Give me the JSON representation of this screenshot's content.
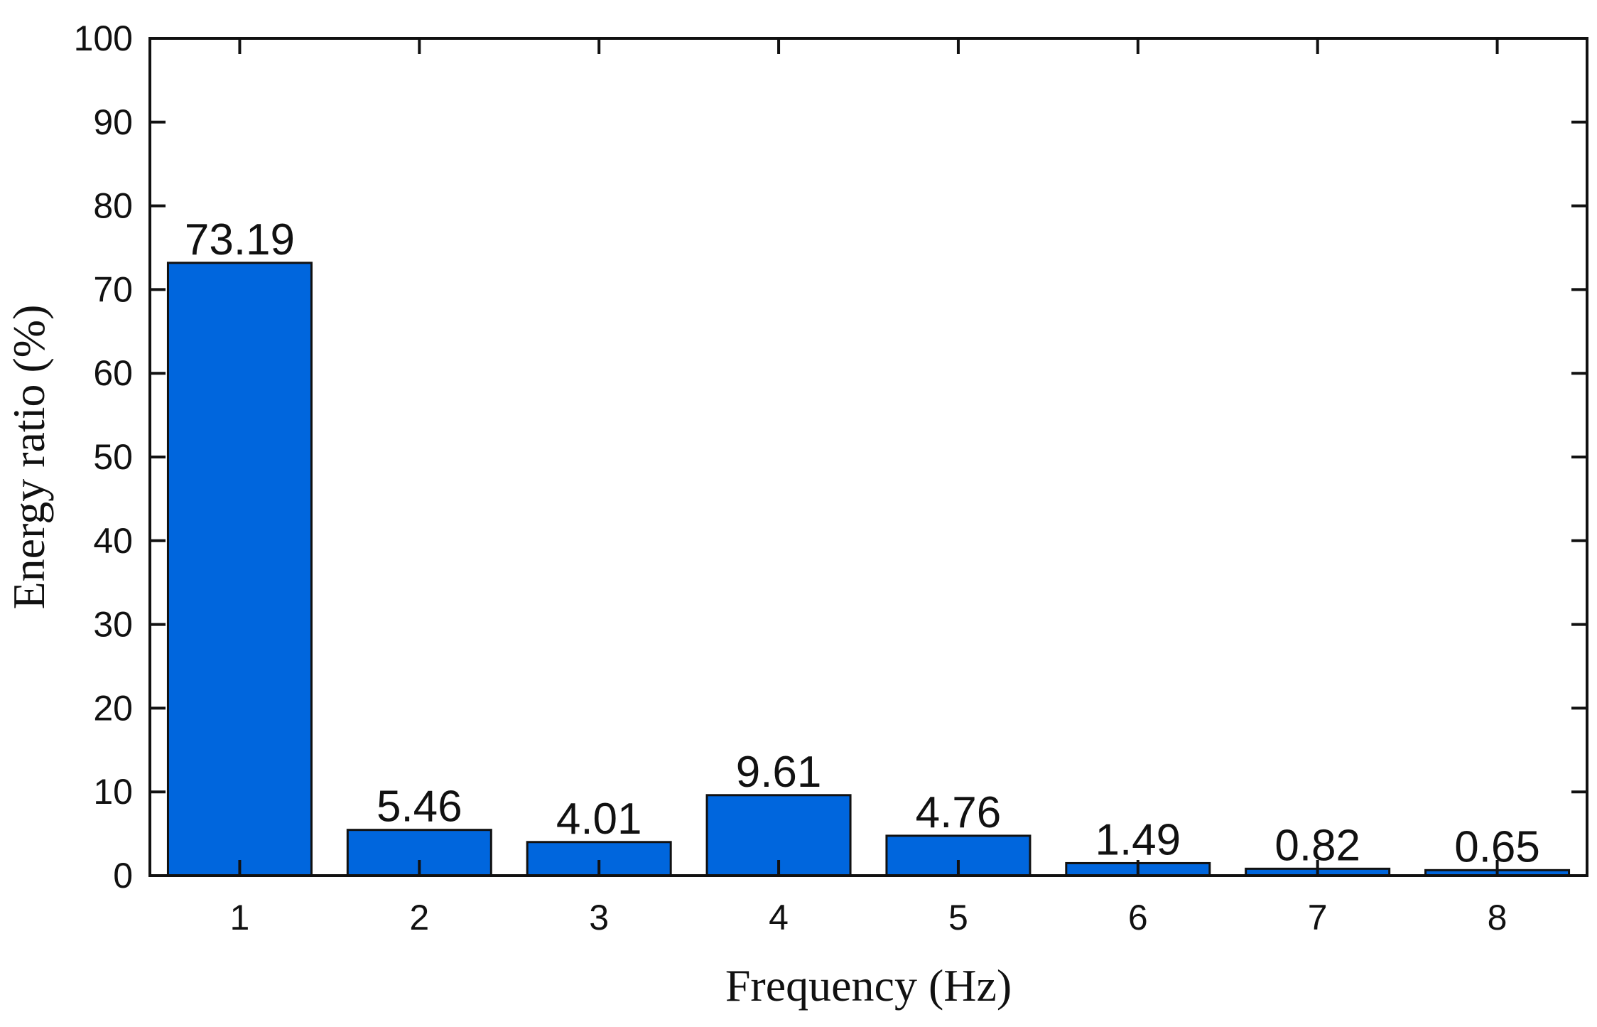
{
  "chart_data": {
    "type": "bar",
    "categories": [
      "1",
      "2",
      "3",
      "4",
      "5",
      "6",
      "7",
      "8"
    ],
    "values": [
      73.19,
      5.46,
      4.01,
      9.61,
      4.76,
      1.49,
      0.82,
      0.65
    ],
    "data_labels": [
      "73.19",
      "5.46",
      "4.01",
      "9.61",
      "4.76",
      "1.49",
      "0.82",
      "0.65"
    ],
    "xlabel": "Frequency (Hz)",
    "ylabel": "Energy ratio (%)",
    "ylim": [
      0,
      100
    ],
    "yticks": [
      0,
      10,
      20,
      30,
      40,
      50,
      60,
      70,
      80,
      90,
      100
    ],
    "grid": false,
    "legend": "none",
    "bar_color": "#0066dd",
    "bar_edge_color": "#111111",
    "axis_color": "#111111"
  }
}
